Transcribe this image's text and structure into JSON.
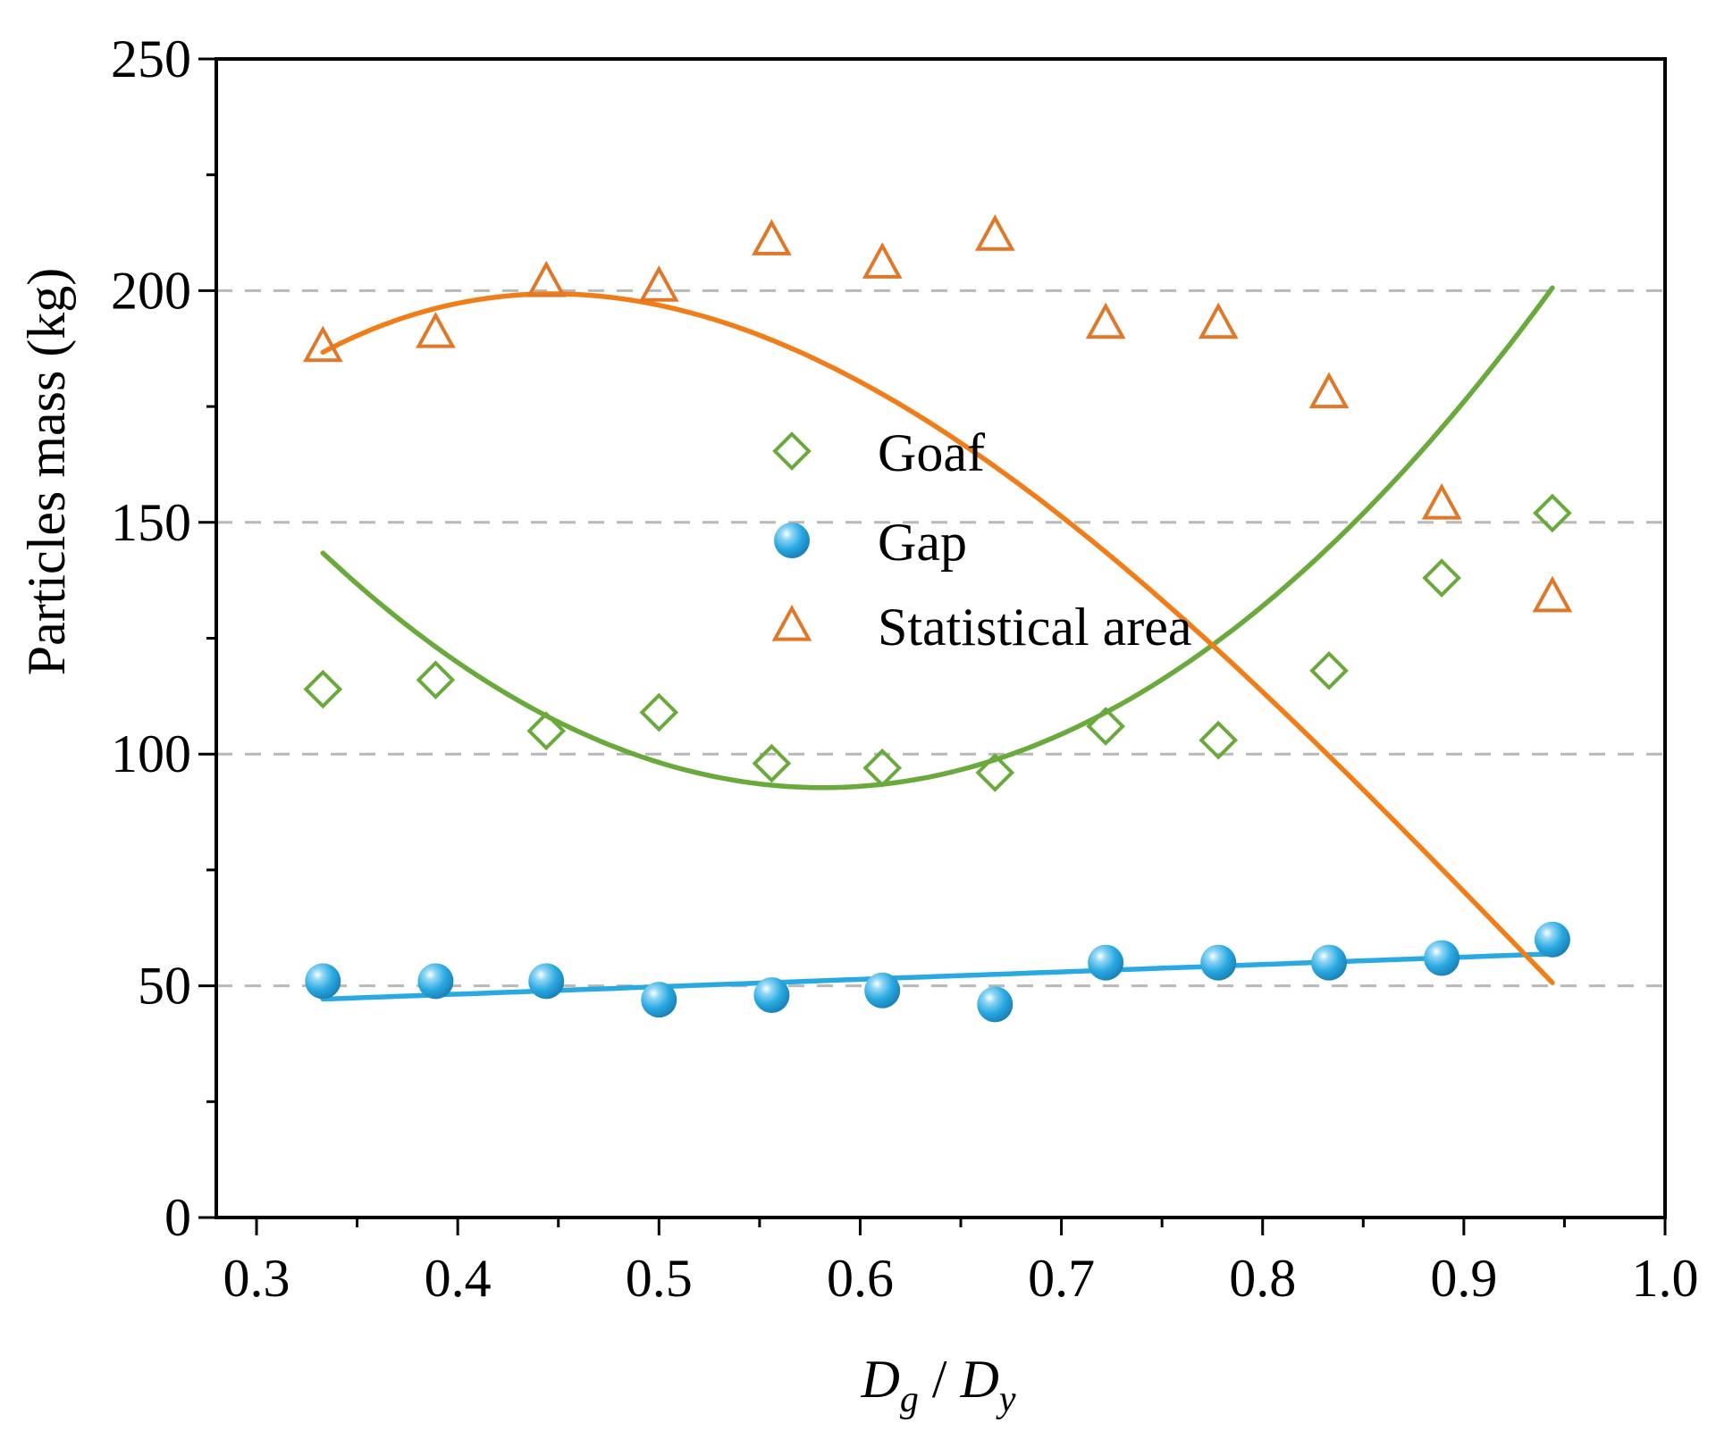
{
  "chart_data": {
    "type": "scatter",
    "title": "",
    "xlabel": {
      "main1": "D",
      "sub1": "g",
      "sep": " / ",
      "main2": "D",
      "sub2": "y"
    },
    "ylabel": "Particles mass (kg)",
    "xlim": [
      0.28,
      1.0
    ],
    "ylim": [
      0,
      250
    ],
    "xticks": [
      0.3,
      0.4,
      0.5,
      0.6,
      0.7,
      0.8,
      0.9,
      1.0
    ],
    "xtick_labels": [
      "0.3",
      "0.4",
      "0.5",
      "0.6",
      "0.7",
      "0.8",
      "0.9",
      "1.0"
    ],
    "yticks": [
      0,
      50,
      100,
      150,
      200,
      250
    ],
    "ytick_labels": [
      "0",
      "50",
      "100",
      "150",
      "200",
      "250"
    ],
    "y_minor_step": 25,
    "gridlines_y": [
      50,
      100,
      150,
      200
    ],
    "legend_position": "center",
    "x": [
      0.333,
      0.389,
      0.444,
      0.5,
      0.556,
      0.611,
      0.667,
      0.722,
      0.778,
      0.833,
      0.889,
      0.944
    ],
    "series": [
      {
        "name": "Goaf",
        "marker": "diamond-open",
        "color": "#6aaa3c",
        "values": [
          114,
          116,
          105,
          109,
          98,
          97,
          96,
          106,
          103,
          118,
          138,
          152
        ],
        "fit_coeffs": [
          370.1,
          -954.0,
          820.4,
          0
        ]
      },
      {
        "name": "Gap",
        "marker": "sphere",
        "color": "#29a9e1",
        "values": [
          51,
          51,
          51,
          47,
          48,
          49,
          46,
          55,
          55,
          55,
          56,
          60
        ],
        "fit_coeffs": [
          41.8,
          16.0,
          0,
          0
        ]
      },
      {
        "name": "Statistical area",
        "marker": "triangle-open",
        "color": "#e0782a",
        "line_color": "#f07d18",
        "values": [
          188,
          191,
          202,
          201,
          211,
          206,
          212,
          193,
          193,
          178,
          154,
          134
        ],
        "fit_coeffs": [
          -35.2,
          1170.8,
          -1716.8,
          606.9
        ]
      }
    ]
  }
}
